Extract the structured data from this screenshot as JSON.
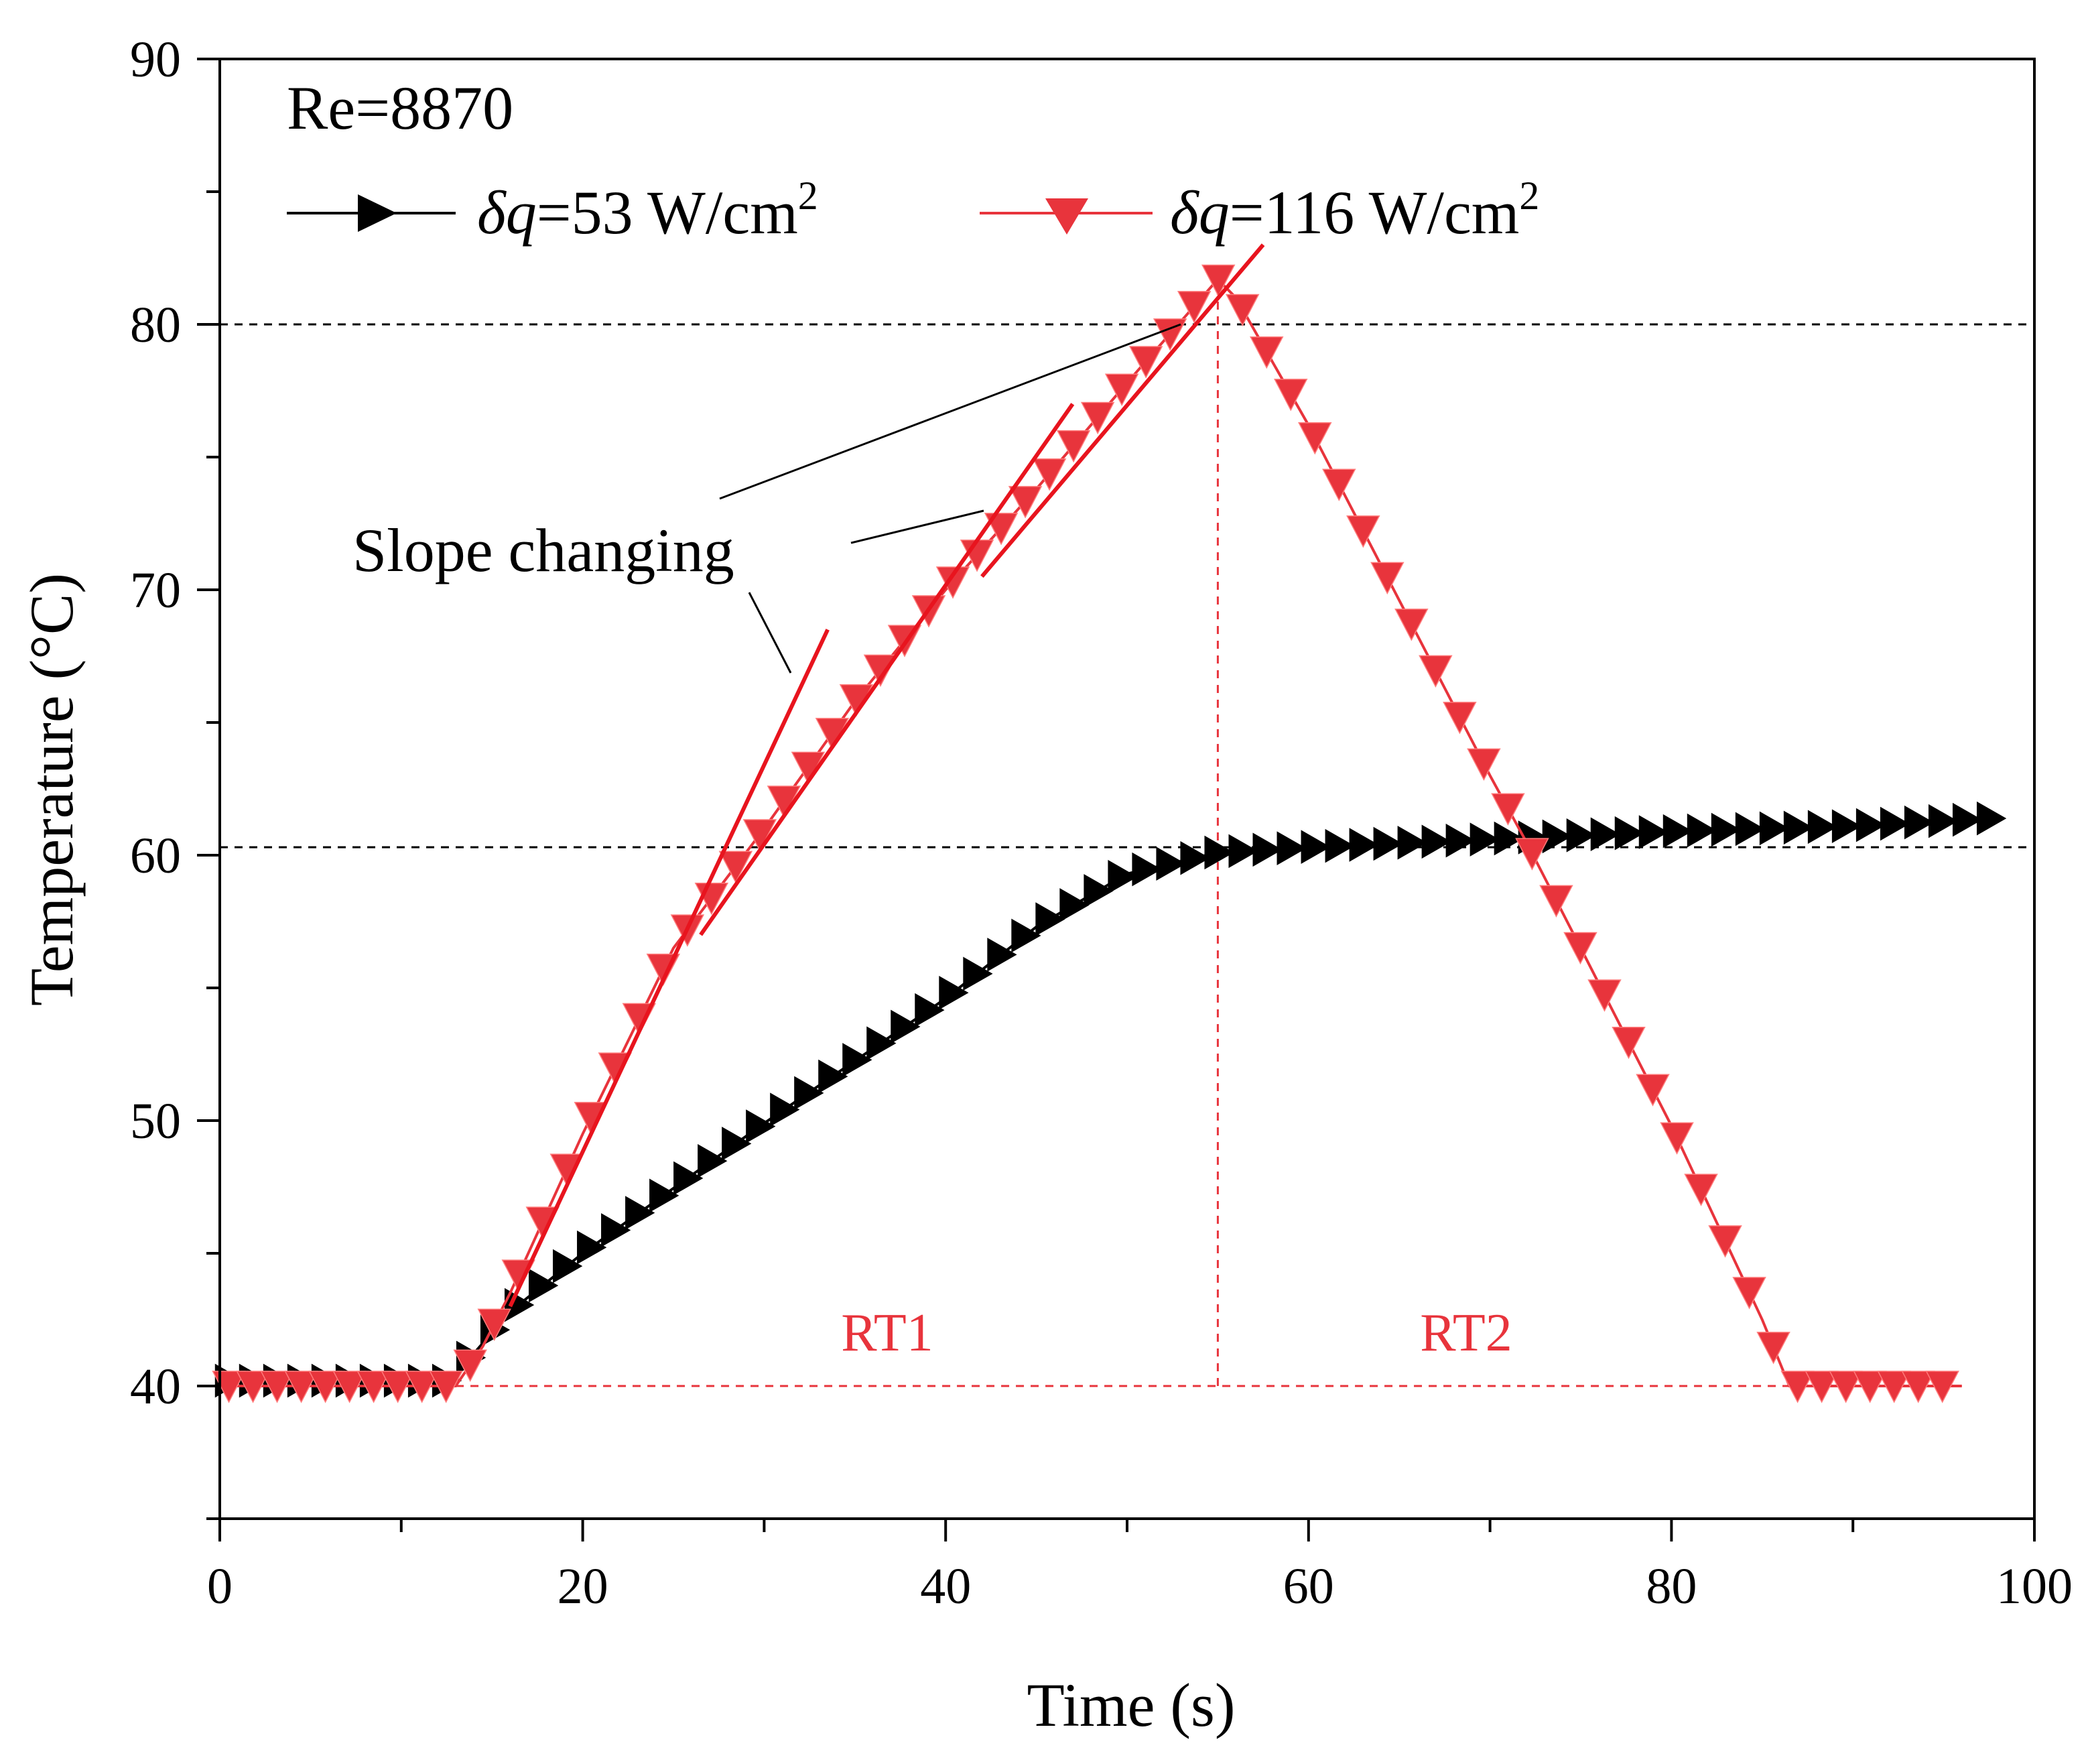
{
  "chart_data": {
    "type": "line",
    "title": "",
    "xlabel": "Time (s)",
    "ylabel": "Temperature (°C)",
    "xlim": [
      0,
      100
    ],
    "ylim": [
      35,
      90
    ],
    "x_ticks": [
      0,
      20,
      40,
      60,
      80,
      100
    ],
    "y_ticks": [
      40,
      50,
      60,
      70,
      80,
      90
    ],
    "grid": false,
    "legend_position": "top-left",
    "condition_label": "Re=8870",
    "legend_entries": [
      {
        "prefix": "δq",
        "value_text": "=53 W/cm",
        "superscript": "2"
      },
      {
        "prefix": "δq",
        "value_text": "=116 W/cm",
        "superscript": "2"
      }
    ],
    "annotations": {
      "slope_text": "Slope changing",
      "rt1": "RT1",
      "rt2": "RT2"
    },
    "reference_lines": {
      "horizontal": [
        80,
        60.3
      ],
      "red_baseline": {
        "y": 40,
        "x_start": 13,
        "x_end": 96
      },
      "red_vertical": {
        "x": 55,
        "y_start": 40,
        "y_end": 81.5
      }
    },
    "slope_fits": [
      {
        "x": [
          16,
          33.5
        ],
        "y": [
          43,
          68.5
        ]
      },
      {
        "x": [
          26.5,
          47
        ],
        "y": [
          57,
          77
        ]
      },
      {
        "x": [
          42,
          57.5
        ],
        "y": [
          70.5,
          83
        ]
      }
    ],
    "series": [
      {
        "name": "δq=53 W/cm2",
        "color": "#000000",
        "marker": "triangle-right",
        "x": [
          0,
          12.7,
          16,
          20,
          30,
          40,
          45,
          50,
          55,
          60,
          70,
          80,
          90,
          98
        ],
        "y": [
          40.2,
          40.2,
          42.8,
          45.0,
          49.9,
          54.6,
          57.3,
          59.3,
          60.1,
          60.3,
          60.6,
          60.9,
          61.1,
          61.4
        ]
      },
      {
        "name": "δq=116 W/cm2",
        "color": "#e8343c",
        "marker": "triangle-down",
        "x": [
          0,
          13,
          14.5,
          16,
          20,
          25,
          30,
          35,
          40,
          45,
          50,
          55,
          56,
          60,
          65,
          70,
          72,
          75,
          80,
          85,
          86.5,
          96
        ],
        "y": [
          40.0,
          40.0,
          41.5,
          43.5,
          49.5,
          56.5,
          61.0,
          65.8,
          70.0,
          73.8,
          77.8,
          81.7,
          81.0,
          76.2,
          69.6,
          63.0,
          60.5,
          56.5,
          49.8,
          42.5,
          40.0,
          40.0
        ]
      }
    ]
  }
}
